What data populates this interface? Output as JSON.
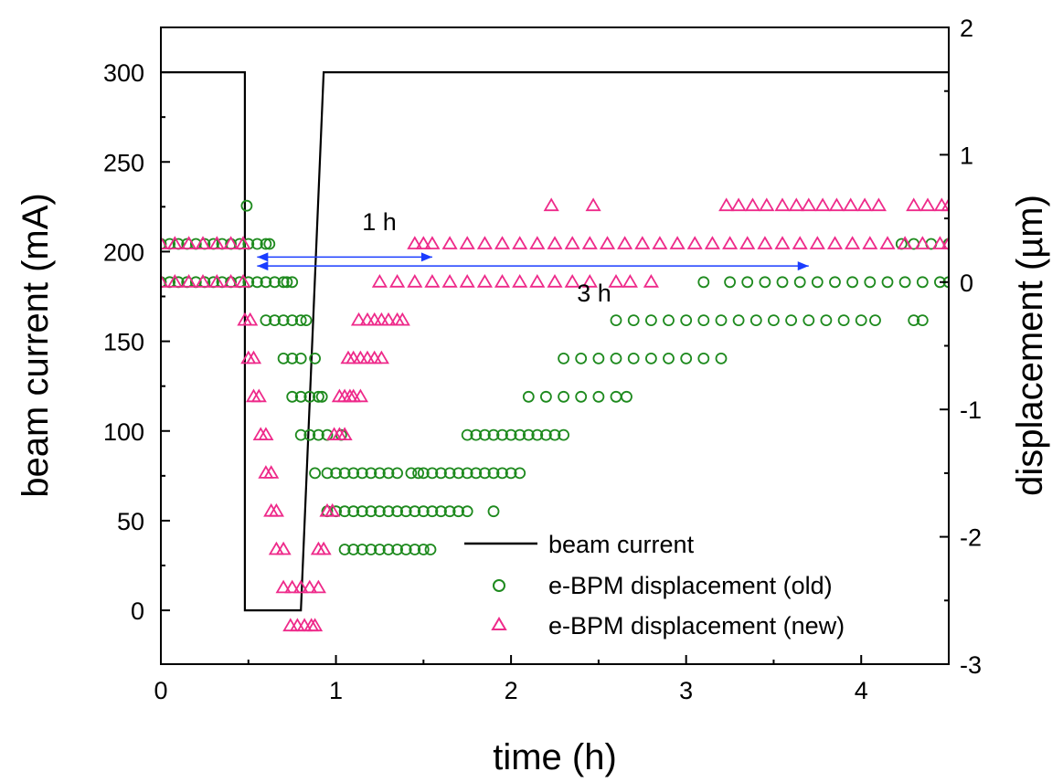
{
  "chart_data": {
    "type": "line+scatter",
    "xlabel": "time (h)",
    "ylabel": "beam current (mA)",
    "y2label": "displacement (µm)",
    "xlim": [
      0,
      4.5
    ],
    "ylim": [
      -30,
      325
    ],
    "y2lim": [
      -3,
      2
    ],
    "xticks": [
      0,
      1,
      2,
      3,
      4
    ],
    "yticks": [
      0,
      50,
      100,
      150,
      200,
      250,
      300
    ],
    "y2ticks": [
      -3,
      -2,
      -1,
      0,
      1,
      2
    ],
    "grid": false,
    "legend": {
      "position": "bottom-right",
      "entries": [
        "beam current",
        "e-BPM displacement (old)",
        "e-BPM displacement (new)"
      ]
    },
    "colors": {
      "beam": "#000000",
      "old": "#1e8a1e",
      "new": "#ee2a8a",
      "arrow": "#1a3cff"
    },
    "annotations": [
      {
        "text": "1 h",
        "x_start": 0.55,
        "x_end": 1.55,
        "y": 197
      },
      {
        "text": "3 h",
        "x_start": 0.55,
        "x_end": 3.7,
        "y": 192
      }
    ],
    "series": [
      {
        "name": "beam current",
        "kind": "line",
        "axis": "left",
        "points": [
          [
            0,
            300
          ],
          [
            0.48,
            300
          ],
          [
            0.48,
            0
          ],
          [
            0.8,
            0
          ],
          [
            0.93,
            300
          ],
          [
            4.5,
            300
          ]
        ]
      },
      {
        "name": "e-BPM displacement (old)",
        "kind": "scatter",
        "axis": "right",
        "marker": "circle",
        "points": [
          [
            0,
            0.3
          ],
          [
            0.05,
            0.3
          ],
          [
            0.1,
            0.3
          ],
          [
            0.15,
            0.3
          ],
          [
            0.2,
            0.3
          ],
          [
            0.25,
            0.3
          ],
          [
            0.3,
            0.3
          ],
          [
            0.35,
            0.3
          ],
          [
            0.4,
            0.3
          ],
          [
            0.45,
            0.3
          ],
          [
            0.5,
            0.3
          ],
          [
            0.55,
            0.3
          ],
          [
            0.6,
            0.3
          ],
          [
            0.62,
            0.3
          ],
          [
            0,
            0
          ],
          [
            0.05,
            0
          ],
          [
            0.1,
            0
          ],
          [
            0.15,
            0
          ],
          [
            0.2,
            0
          ],
          [
            0.25,
            0
          ],
          [
            0.3,
            0
          ],
          [
            0.35,
            0
          ],
          [
            0.4,
            0
          ],
          [
            0.45,
            0
          ],
          [
            0.5,
            0
          ],
          [
            0.55,
            0
          ],
          [
            0.6,
            0
          ],
          [
            0.65,
            0
          ],
          [
            0.7,
            0
          ],
          [
            0.72,
            0
          ],
          [
            0.75,
            0
          ],
          [
            0.49,
            0.6
          ],
          [
            0.6,
            -0.3
          ],
          [
            0.65,
            -0.3
          ],
          [
            0.7,
            -0.3
          ],
          [
            0.75,
            -0.3
          ],
          [
            0.8,
            -0.3
          ],
          [
            0.83,
            -0.3
          ],
          [
            0.7,
            -0.6
          ],
          [
            0.75,
            -0.6
          ],
          [
            0.8,
            -0.6
          ],
          [
            0.88,
            -0.6
          ],
          [
            0.75,
            -0.9
          ],
          [
            0.8,
            -0.9
          ],
          [
            0.85,
            -0.9
          ],
          [
            0.9,
            -0.9
          ],
          [
            0.92,
            -0.9
          ],
          [
            0.8,
            -1.2
          ],
          [
            0.85,
            -1.2
          ],
          [
            0.9,
            -1.2
          ],
          [
            0.95,
            -1.2
          ],
          [
            1.03,
            -1.2
          ],
          [
            0.88,
            -1.5
          ],
          [
            0.95,
            -1.5
          ],
          [
            1.0,
            -1.5
          ],
          [
            1.05,
            -1.5
          ],
          [
            1.1,
            -1.5
          ],
          [
            1.15,
            -1.5
          ],
          [
            1.2,
            -1.5
          ],
          [
            1.25,
            -1.5
          ],
          [
            1.3,
            -1.5
          ],
          [
            1.35,
            -1.5
          ],
          [
            1.43,
            -1.5
          ],
          [
            1.47,
            -1.5
          ],
          [
            1.5,
            -1.5
          ],
          [
            1.55,
            -1.5
          ],
          [
            1.6,
            -1.5
          ],
          [
            1.65,
            -1.5
          ],
          [
            1.7,
            -1.5
          ],
          [
            1.75,
            -1.5
          ],
          [
            1.8,
            -1.5
          ],
          [
            1.85,
            -1.5
          ],
          [
            1.9,
            -1.5
          ],
          [
            1.95,
            -1.5
          ],
          [
            2.0,
            -1.5
          ],
          [
            2.05,
            -1.5
          ],
          [
            0.95,
            -1.8
          ],
          [
            1.0,
            -1.8
          ],
          [
            1.05,
            -1.8
          ],
          [
            1.1,
            -1.8
          ],
          [
            1.15,
            -1.8
          ],
          [
            1.2,
            -1.8
          ],
          [
            1.25,
            -1.8
          ],
          [
            1.3,
            -1.8
          ],
          [
            1.35,
            -1.8
          ],
          [
            1.4,
            -1.8
          ],
          [
            1.45,
            -1.8
          ],
          [
            1.5,
            -1.8
          ],
          [
            1.55,
            -1.8
          ],
          [
            1.6,
            -1.8
          ],
          [
            1.65,
            -1.8
          ],
          [
            1.7,
            -1.8
          ],
          [
            1.75,
            -1.8
          ],
          [
            1.9,
            -1.8
          ],
          [
            1.05,
            -2.1
          ],
          [
            1.1,
            -2.1
          ],
          [
            1.15,
            -2.1
          ],
          [
            1.2,
            -2.1
          ],
          [
            1.25,
            -2.1
          ],
          [
            1.3,
            -2.1
          ],
          [
            1.35,
            -2.1
          ],
          [
            1.4,
            -2.1
          ],
          [
            1.45,
            -2.1
          ],
          [
            1.5,
            -2.1
          ],
          [
            1.54,
            -2.1
          ],
          [
            1.75,
            -1.2
          ],
          [
            1.8,
            -1.2
          ],
          [
            1.85,
            -1.2
          ],
          [
            1.9,
            -1.2
          ],
          [
            1.95,
            -1.2
          ],
          [
            2.0,
            -1.2
          ],
          [
            2.05,
            -1.2
          ],
          [
            2.1,
            -1.2
          ],
          [
            2.15,
            -1.2
          ],
          [
            2.2,
            -1.2
          ],
          [
            2.25,
            -1.2
          ],
          [
            2.3,
            -1.2
          ],
          [
            2.1,
            -0.9
          ],
          [
            2.2,
            -0.9
          ],
          [
            2.3,
            -0.9
          ],
          [
            2.4,
            -0.9
          ],
          [
            2.5,
            -0.9
          ],
          [
            2.6,
            -0.9
          ],
          [
            2.66,
            -0.9
          ],
          [
            2.3,
            -0.6
          ],
          [
            2.4,
            -0.6
          ],
          [
            2.5,
            -0.6
          ],
          [
            2.6,
            -0.6
          ],
          [
            2.7,
            -0.6
          ],
          [
            2.8,
            -0.6
          ],
          [
            2.9,
            -0.6
          ],
          [
            3.0,
            -0.6
          ],
          [
            3.1,
            -0.6
          ],
          [
            3.2,
            -0.6
          ],
          [
            2.6,
            -0.3
          ],
          [
            2.7,
            -0.3
          ],
          [
            2.8,
            -0.3
          ],
          [
            2.9,
            -0.3
          ],
          [
            3.0,
            -0.3
          ],
          [
            3.1,
            -0.3
          ],
          [
            3.2,
            -0.3
          ],
          [
            3.3,
            -0.3
          ],
          [
            3.4,
            -0.3
          ],
          [
            3.5,
            -0.3
          ],
          [
            3.6,
            -0.3
          ],
          [
            3.7,
            -0.3
          ],
          [
            3.8,
            -0.3
          ],
          [
            3.9,
            -0.3
          ],
          [
            4.0,
            -0.3
          ],
          [
            4.08,
            -0.3
          ],
          [
            4.3,
            -0.3
          ],
          [
            4.35,
            -0.3
          ],
          [
            3.1,
            0
          ],
          [
            3.25,
            0
          ],
          [
            3.35,
            0
          ],
          [
            3.45,
            0
          ],
          [
            3.55,
            0
          ],
          [
            3.65,
            0
          ],
          [
            3.75,
            0
          ],
          [
            3.85,
            0
          ],
          [
            3.95,
            0
          ],
          [
            4.05,
            0
          ],
          [
            4.15,
            0
          ],
          [
            4.25,
            0
          ],
          [
            4.35,
            0
          ],
          [
            4.45,
            0
          ],
          [
            4.5,
            0
          ],
          [
            4.23,
            0.3
          ],
          [
            4.3,
            0.3
          ],
          [
            4.4,
            0.3
          ],
          [
            4.5,
            0.3
          ]
        ]
      },
      {
        "name": "e-BPM displacement (new)",
        "kind": "scatter",
        "axis": "right",
        "marker": "triangle",
        "points": [
          [
            0,
            0.3
          ],
          [
            0.08,
            0.3
          ],
          [
            0.16,
            0.3
          ],
          [
            0.24,
            0.3
          ],
          [
            0.32,
            0.3
          ],
          [
            0.4,
            0.3
          ],
          [
            0.47,
            0.3
          ],
          [
            0,
            0
          ],
          [
            0.08,
            0
          ],
          [
            0.16,
            0
          ],
          [
            0.24,
            0
          ],
          [
            0.32,
            0
          ],
          [
            0.4,
            0
          ],
          [
            0.47,
            0
          ],
          [
            0.48,
            -0.3
          ],
          [
            0.51,
            -0.3
          ],
          [
            0.5,
            -0.6
          ],
          [
            0.53,
            -0.6
          ],
          [
            0.53,
            -0.9
          ],
          [
            0.56,
            -0.9
          ],
          [
            0.57,
            -1.2
          ],
          [
            0.6,
            -1.2
          ],
          [
            0.6,
            -1.5
          ],
          [
            0.63,
            -1.5
          ],
          [
            0.63,
            -1.8
          ],
          [
            0.66,
            -1.8
          ],
          [
            0.66,
            -2.1
          ],
          [
            0.7,
            -2.1
          ],
          [
            0.7,
            -2.4
          ],
          [
            0.75,
            -2.4
          ],
          [
            0.8,
            -2.4
          ],
          [
            0.85,
            -2.4
          ],
          [
            0.9,
            -2.4
          ],
          [
            0.74,
            -2.7
          ],
          [
            0.78,
            -2.7
          ],
          [
            0.82,
            -2.7
          ],
          [
            0.86,
            -2.7
          ],
          [
            0.88,
            -2.7
          ],
          [
            0.9,
            -2.1
          ],
          [
            0.93,
            -2.1
          ],
          [
            0.95,
            -1.8
          ],
          [
            0.98,
            -1.8
          ],
          [
            0.99,
            -1.2
          ],
          [
            1.02,
            -1.2
          ],
          [
            1.05,
            -1.2
          ],
          [
            1.02,
            -0.9
          ],
          [
            1.05,
            -0.9
          ],
          [
            1.08,
            -0.9
          ],
          [
            1.1,
            -0.9
          ],
          [
            1.14,
            -0.9
          ],
          [
            1.07,
            -0.6
          ],
          [
            1.1,
            -0.6
          ],
          [
            1.14,
            -0.6
          ],
          [
            1.18,
            -0.6
          ],
          [
            1.22,
            -0.6
          ],
          [
            1.26,
            -0.6
          ],
          [
            1.13,
            -0.3
          ],
          [
            1.18,
            -0.3
          ],
          [
            1.22,
            -0.3
          ],
          [
            1.26,
            -0.3
          ],
          [
            1.3,
            -0.3
          ],
          [
            1.35,
            -0.3
          ],
          [
            1.38,
            -0.3
          ],
          [
            1.25,
            0
          ],
          [
            1.35,
            0
          ],
          [
            1.45,
            0
          ],
          [
            1.55,
            0
          ],
          [
            1.65,
            0
          ],
          [
            1.75,
            0
          ],
          [
            1.85,
            0
          ],
          [
            1.95,
            0
          ],
          [
            2.05,
            0
          ],
          [
            2.15,
            0
          ],
          [
            2.25,
            0
          ],
          [
            2.35,
            0
          ],
          [
            2.45,
            0
          ],
          [
            2.6,
            0
          ],
          [
            2.68,
            0
          ],
          [
            2.8,
            0
          ],
          [
            1.45,
            0.3
          ],
          [
            1.5,
            0.3
          ],
          [
            1.55,
            0.3
          ],
          [
            1.65,
            0.3
          ],
          [
            1.75,
            0.3
          ],
          [
            1.85,
            0.3
          ],
          [
            1.95,
            0.3
          ],
          [
            2.05,
            0.3
          ],
          [
            2.15,
            0.3
          ],
          [
            2.25,
            0.3
          ],
          [
            2.35,
            0.3
          ],
          [
            2.45,
            0.3
          ],
          [
            2.55,
            0.3
          ],
          [
            2.65,
            0.3
          ],
          [
            2.75,
            0.3
          ],
          [
            2.85,
            0.3
          ],
          [
            2.95,
            0.3
          ],
          [
            3.05,
            0.3
          ],
          [
            3.15,
            0.3
          ],
          [
            3.25,
            0.3
          ],
          [
            3.35,
            0.3
          ],
          [
            3.45,
            0.3
          ],
          [
            3.55,
            0.3
          ],
          [
            3.65,
            0.3
          ],
          [
            3.75,
            0.3
          ],
          [
            3.85,
            0.3
          ],
          [
            3.95,
            0.3
          ],
          [
            4.05,
            0.3
          ],
          [
            4.15,
            0.3
          ],
          [
            4.25,
            0.3
          ],
          [
            4.35,
            0.3
          ],
          [
            4.45,
            0.3
          ],
          [
            4.5,
            0.3
          ],
          [
            2.23,
            0.6
          ],
          [
            2.47,
            0.6
          ],
          [
            3.23,
            0.6
          ],
          [
            3.3,
            0.6
          ],
          [
            3.38,
            0.6
          ],
          [
            3.46,
            0.6
          ],
          [
            3.55,
            0.6
          ],
          [
            3.63,
            0.6
          ],
          [
            3.7,
            0.6
          ],
          [
            3.78,
            0.6
          ],
          [
            3.86,
            0.6
          ],
          [
            3.94,
            0.6
          ],
          [
            4.02,
            0.6
          ],
          [
            4.1,
            0.6
          ],
          [
            4.3,
            0.6
          ],
          [
            4.38,
            0.6
          ],
          [
            4.46,
            0.6
          ],
          [
            4.5,
            0.6
          ]
        ]
      }
    ]
  }
}
